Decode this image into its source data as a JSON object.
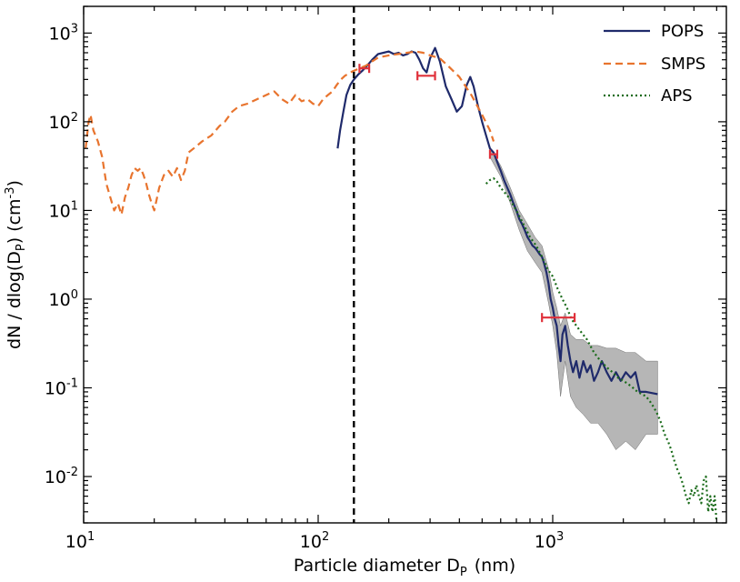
{
  "chart_data": {
    "type": "line",
    "xscale": "log",
    "yscale": "log",
    "xlim": [
      10,
      5500
    ],
    "ylim": [
      0.003,
      2000
    ],
    "xlabel": {
      "main": "Particle diameter D",
      "sub": "P",
      "unit": "(nm)"
    },
    "ylabel": {
      "pre": "dN / dlog(D",
      "sub": "P",
      "mid": ") (cm",
      "sup": "-3",
      "post": ")"
    },
    "x_ticks": [
      {
        "value": 10,
        "base": "10",
        "exp": "1"
      },
      {
        "value": 100,
        "base": "10",
        "exp": "2"
      },
      {
        "value": 1000,
        "base": "10",
        "exp": "3"
      }
    ],
    "y_ticks": [
      {
        "value": 0.01,
        "base": "10",
        "exp": "-2"
      },
      {
        "value": 0.1,
        "base": "10",
        "exp": "-1"
      },
      {
        "value": 1,
        "base": "10",
        "exp": "0"
      },
      {
        "value": 10,
        "base": "10",
        "exp": "1"
      },
      {
        "value": 100,
        "base": "10",
        "exp": "2"
      },
      {
        "value": 1000,
        "base": "10",
        "exp": "3"
      }
    ],
    "legend": {
      "placement": "top-right"
    },
    "vline": {
      "x": 142,
      "style": "dashed",
      "color": "#000000"
    },
    "series": [
      {
        "name": "POPS",
        "style": "solid",
        "color": "#1f2a6b",
        "points": [
          [
            121,
            50
          ],
          [
            124,
            80
          ],
          [
            128,
            130
          ],
          [
            132,
            200
          ],
          [
            137,
            260
          ],
          [
            142,
            300
          ],
          [
            148,
            340
          ],
          [
            155,
            380
          ],
          [
            162,
            430
          ],
          [
            170,
            500
          ],
          [
            180,
            580
          ],
          [
            190,
            600
          ],
          [
            200,
            620
          ],
          [
            210,
            580
          ],
          [
            220,
            600
          ],
          [
            230,
            560
          ],
          [
            240,
            580
          ],
          [
            250,
            620
          ],
          [
            260,
            600
          ],
          [
            270,
            500
          ],
          [
            280,
            400
          ],
          [
            290,
            360
          ],
          [
            300,
            520
          ],
          [
            315,
            680
          ],
          [
            330,
            480
          ],
          [
            350,
            250
          ],
          [
            370,
            180
          ],
          [
            390,
            130
          ],
          [
            410,
            150
          ],
          [
            430,
            260
          ],
          [
            445,
            320
          ],
          [
            460,
            250
          ],
          [
            480,
            150
          ],
          [
            500,
            100
          ],
          [
            520,
            70
          ],
          [
            540,
            50
          ],
          [
            560,
            45
          ],
          [
            580,
            35
          ],
          [
            600,
            28
          ],
          [
            620,
            22
          ],
          [
            640,
            18
          ],
          [
            660,
            15
          ],
          [
            680,
            12
          ],
          [
            700,
            10
          ],
          [
            720,
            8
          ],
          [
            740,
            7
          ],
          [
            760,
            6
          ],
          [
            780,
            5
          ],
          [
            800,
            4.5
          ],
          [
            820,
            4
          ],
          [
            840,
            3.8
          ],
          [
            860,
            3.5
          ],
          [
            880,
            3.2
          ],
          [
            900,
            3
          ],
          [
            920,
            2.5
          ],
          [
            940,
            2
          ],
          [
            960,
            1.5
          ],
          [
            980,
            1.0
          ],
          [
            1000,
            0.8
          ],
          [
            1020,
            0.6
          ],
          [
            1040,
            0.5
          ],
          [
            1060,
            0.3
          ],
          [
            1080,
            0.2
          ],
          [
            1100,
            0.4
          ],
          [
            1130,
            0.5
          ],
          [
            1160,
            0.3
          ],
          [
            1190,
            0.2
          ],
          [
            1220,
            0.15
          ],
          [
            1260,
            0.2
          ],
          [
            1300,
            0.13
          ],
          [
            1350,
            0.2
          ],
          [
            1400,
            0.15
          ],
          [
            1450,
            0.18
          ],
          [
            1500,
            0.12
          ],
          [
            1560,
            0.15
          ],
          [
            1620,
            0.2
          ],
          [
            1700,
            0.15
          ],
          [
            1780,
            0.12
          ],
          [
            1860,
            0.15
          ],
          [
            1950,
            0.12
          ],
          [
            2050,
            0.15
          ],
          [
            2150,
            0.13
          ],
          [
            2250,
            0.15
          ],
          [
            2350,
            0.09
          ],
          [
            2500,
            0.09
          ],
          [
            2800,
            0.085
          ]
        ],
        "band_upper": [
          [
            540,
            52
          ],
          [
            600,
            32
          ],
          [
            660,
            18
          ],
          [
            720,
            10
          ],
          [
            780,
            7
          ],
          [
            840,
            5
          ],
          [
            900,
            4
          ],
          [
            960,
            2.2
          ],
          [
            1000,
            1.2
          ],
          [
            1040,
            0.8
          ],
          [
            1080,
            0.5
          ],
          [
            1130,
            0.7
          ],
          [
            1190,
            0.4
          ],
          [
            1260,
            0.35
          ],
          [
            1350,
            0.35
          ],
          [
            1450,
            0.3
          ],
          [
            1560,
            0.3
          ],
          [
            1700,
            0.28
          ],
          [
            1860,
            0.28
          ],
          [
            2050,
            0.25
          ],
          [
            2250,
            0.25
          ],
          [
            2500,
            0.2
          ],
          [
            2800,
            0.2
          ]
        ],
        "band_lower": [
          [
            540,
            40
          ],
          [
            600,
            24
          ],
          [
            660,
            12
          ],
          [
            720,
            6
          ],
          [
            780,
            3.5
          ],
          [
            840,
            2.6
          ],
          [
            900,
            2
          ],
          [
            960,
            0.9
          ],
          [
            1000,
            0.5
          ],
          [
            1040,
            0.25
          ],
          [
            1080,
            0.08
          ],
          [
            1130,
            0.2
          ],
          [
            1190,
            0.08
          ],
          [
            1260,
            0.06
          ],
          [
            1350,
            0.05
          ],
          [
            1450,
            0.04
          ],
          [
            1560,
            0.04
          ],
          [
            1700,
            0.03
          ],
          [
            1860,
            0.02
          ],
          [
            2050,
            0.025
          ],
          [
            2250,
            0.02
          ],
          [
            2500,
            0.03
          ],
          [
            2800,
            0.03
          ]
        ]
      },
      {
        "name": "SMPS",
        "style": "dashed",
        "color": "#e8742e",
        "points": [
          [
            10.2,
            50
          ],
          [
            10.5,
            100
          ],
          [
            10.7,
            120
          ],
          [
            11,
            80
          ],
          [
            11.5,
            60
          ],
          [
            12,
            40
          ],
          [
            12.5,
            20
          ],
          [
            13,
            14
          ],
          [
            13.5,
            10
          ],
          [
            14,
            12
          ],
          [
            14.5,
            9
          ],
          [
            15,
            14
          ],
          [
            15.5,
            18
          ],
          [
            16,
            25
          ],
          [
            16.5,
            30
          ],
          [
            17,
            28
          ],
          [
            17.5,
            30
          ],
          [
            18,
            25
          ],
          [
            18.5,
            20
          ],
          [
            19,
            15
          ],
          [
            19.5,
            12
          ],
          [
            20,
            10
          ],
          [
            21,
            18
          ],
          [
            22,
            25
          ],
          [
            23,
            28
          ],
          [
            24,
            24
          ],
          [
            25,
            30
          ],
          [
            26,
            22
          ],
          [
            27,
            28
          ],
          [
            28,
            45
          ],
          [
            30,
            52
          ],
          [
            32,
            60
          ],
          [
            35,
            70
          ],
          [
            38,
            90
          ],
          [
            40,
            100
          ],
          [
            43,
            130
          ],
          [
            46,
            150
          ],
          [
            50,
            160
          ],
          [
            55,
            180
          ],
          [
            60,
            200
          ],
          [
            65,
            220
          ],
          [
            70,
            180
          ],
          [
            75,
            160
          ],
          [
            80,
            200
          ],
          [
            85,
            170
          ],
          [
            90,
            180
          ],
          [
            95,
            160
          ],
          [
            100,
            150
          ],
          [
            105,
            180
          ],
          [
            110,
            200
          ],
          [
            115,
            220
          ],
          [
            120,
            260
          ],
          [
            125,
            300
          ],
          [
            130,
            330
          ],
          [
            140,
            370
          ],
          [
            150,
            400
          ],
          [
            160,
            430
          ],
          [
            170,
            480
          ],
          [
            180,
            530
          ],
          [
            200,
            560
          ],
          [
            220,
            580
          ],
          [
            240,
            600
          ],
          [
            260,
            620
          ],
          [
            280,
            600
          ],
          [
            300,
            560
          ],
          [
            330,
            520
          ],
          [
            360,
            420
          ],
          [
            400,
            320
          ],
          [
            450,
            200
          ],
          [
            500,
            120
          ],
          [
            540,
            80
          ],
          [
            560,
            60
          ]
        ]
      },
      {
        "name": "APS",
        "style": "dotted",
        "color": "#1a6b1a",
        "points": [
          [
            520,
            20
          ],
          [
            540,
            22
          ],
          [
            560,
            23
          ],
          [
            580,
            21
          ],
          [
            600,
            18
          ],
          [
            650,
            14
          ],
          [
            700,
            10
          ],
          [
            750,
            7
          ],
          [
            800,
            5
          ],
          [
            850,
            4
          ],
          [
            900,
            3
          ],
          [
            950,
            2.2
          ],
          [
            1000,
            1.8
          ],
          [
            1050,
            1.3
          ],
          [
            1100,
            1.0
          ],
          [
            1150,
            0.8
          ],
          [
            1200,
            0.6
          ],
          [
            1300,
            0.45
          ],
          [
            1400,
            0.35
          ],
          [
            1500,
            0.25
          ],
          [
            1600,
            0.2
          ],
          [
            1700,
            0.17
          ],
          [
            1800,
            0.15
          ],
          [
            1900,
            0.13
          ],
          [
            2000,
            0.12
          ],
          [
            2100,
            0.11
          ],
          [
            2200,
            0.1
          ],
          [
            2300,
            0.09
          ],
          [
            2400,
            0.085
          ],
          [
            2500,
            0.08
          ],
          [
            2600,
            0.07
          ],
          [
            2700,
            0.06
          ],
          [
            2800,
            0.05
          ],
          [
            2900,
            0.04
          ],
          [
            3000,
            0.03
          ],
          [
            3100,
            0.025
          ],
          [
            3200,
            0.02
          ],
          [
            3300,
            0.015
          ],
          [
            3400,
            0.012
          ],
          [
            3500,
            0.01
          ],
          [
            3600,
            0.008
          ],
          [
            3700,
            0.006
          ],
          [
            3800,
            0.005
          ],
          [
            3900,
            0.007
          ],
          [
            4000,
            0.006
          ],
          [
            4100,
            0.008
          ],
          [
            4200,
            0.006
          ],
          [
            4300,
            0.005
          ],
          [
            4400,
            0.009
          ],
          [
            4500,
            0.01
          ],
          [
            4600,
            0.004
          ],
          [
            4700,
            0.006
          ],
          [
            4800,
            0.004
          ],
          [
            4900,
            0.006
          ],
          [
            5000,
            0.003
          ]
        ]
      }
    ],
    "error_bars": [
      {
        "xmin": 150,
        "xmax": 165,
        "y": 400
      },
      {
        "xmin": 265,
        "xmax": 315,
        "y": 330
      },
      {
        "xmin": 540,
        "xmax": 580,
        "y": 43
      },
      {
        "xmin": 900,
        "xmax": 1240,
        "y": 0.62
      }
    ],
    "error_bar_color": "#e0303a",
    "band_color": "#9e9e9e"
  }
}
